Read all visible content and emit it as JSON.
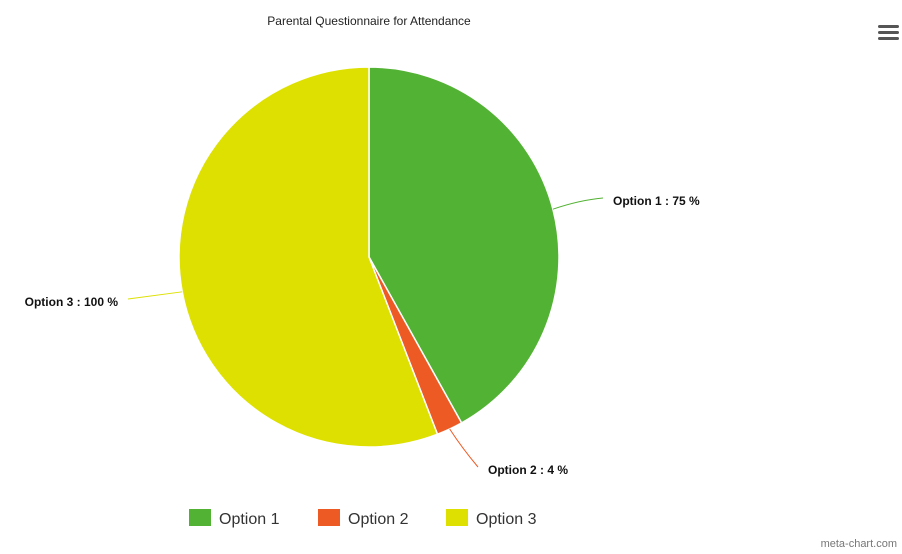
{
  "chart_data": {
    "type": "pie",
    "title": "Parental Questionnaire for Attendance",
    "slices": [
      {
        "name": "Option 1",
        "value": 75,
        "label": "Option 1 : 75 %",
        "color": "#52b233"
      },
      {
        "name": "Option 2",
        "value": 4,
        "label": "Option 2 : 4 %",
        "color": "#ee5a24"
      },
      {
        "name": "Option 3",
        "value": 100,
        "label": "Option 3 : 100 %",
        "color": "#dde000"
      }
    ],
    "legend": {
      "position": "bottom-center",
      "items": [
        "Option 1",
        "Option 2",
        "Option 3"
      ]
    }
  },
  "menu": {
    "icon": "hamburger-menu-icon"
  },
  "credit": "meta-chart.com"
}
